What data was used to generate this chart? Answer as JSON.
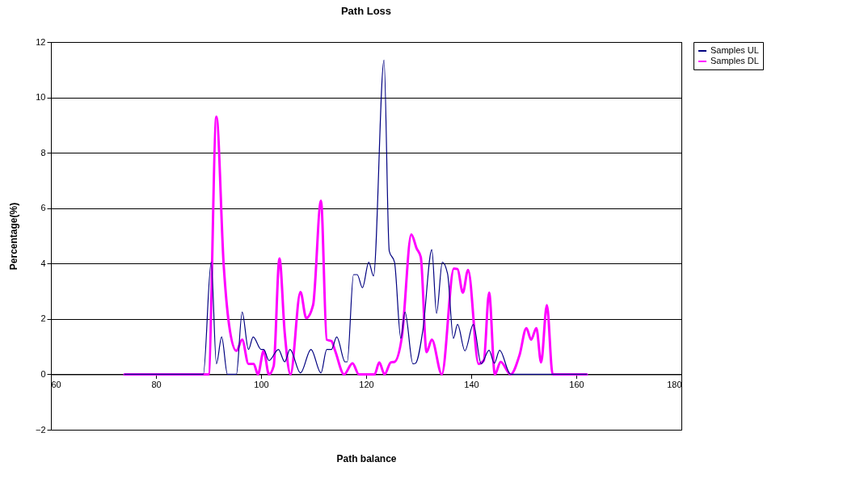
{
  "chart_data": {
    "type": "line",
    "title": "Path Loss",
    "xlabel": "Path balance",
    "ylabel": "Percentage(%)",
    "xlim": [
      60,
      180
    ],
    "xticks": [
      60,
      80,
      100,
      120,
      140,
      160,
      180
    ],
    "ylim": [
      -2,
      12
    ],
    "yticks": [
      -2,
      0,
      2,
      4,
      6,
      8,
      10,
      12
    ],
    "grid": "y",
    "legend": "right",
    "line_style": "solid",
    "series": [
      {
        "name": "Samples UL",
        "color": "#000080",
        "x": [
          74,
          89,
          90.5,
          91.5,
          92.5,
          93.6,
          95.3,
          96.4,
          97.6,
          98.5,
          100,
          100.5,
          101.5,
          103.3,
          104.5,
          105.5,
          107.5,
          109.5,
          111.4,
          112.5,
          113.4,
          114.4,
          116,
          116.4,
          117.6,
          118.3,
          119.3,
          120.5,
          121.4,
          123.4,
          124.4,
          125.4,
          126.6,
          127.4,
          128.9,
          129.4,
          130.8,
          132.5,
          133.4,
          134.5,
          135.5,
          136.6,
          137.4,
          138.8,
          140.4,
          141.9,
          143.4,
          144.4,
          145.4,
          147.5,
          162
        ],
        "values": [
          0,
          0,
          4.05,
          0.38,
          1.35,
          0,
          0,
          2.25,
          0.9,
          1.35,
          0.9,
          0.9,
          0.5,
          0.9,
          0.45,
          0.9,
          0.05,
          0.9,
          0.05,
          0.9,
          0.9,
          1.35,
          0.45,
          0.45,
          3.6,
          3.6,
          3.13,
          4.05,
          3.55,
          11.35,
          4.45,
          4.05,
          1.3,
          2.25,
          0.38,
          0.4,
          1.6,
          4.5,
          2.2,
          4.05,
          3.63,
          1.3,
          1.8,
          0.85,
          1.8,
          0.38,
          0.87,
          0.4,
          0.87,
          0,
          0
        ]
      },
      {
        "name": "Samples DL",
        "color": "#ff00ff",
        "x": [
          74,
          90,
          91.5,
          92.9,
          93.9,
          95.3,
          96.4,
          97.6,
          98.6,
          99.4,
          100.5,
          101.5,
          102.4,
          103.5,
          104.5,
          105.6,
          107.5,
          108.6,
          109.9,
          111.4,
          112.5,
          113.4,
          114.1,
          115.8,
          117.4,
          118.6,
          121.6,
          122.5,
          123.5,
          124.7,
          125.4,
          126.8,
          128.6,
          129.6,
          130.4,
          131.5,
          132.5,
          134.4,
          136.7,
          137.4,
          138.4,
          139.4,
          141.4,
          142.4,
          143.4,
          144.5,
          145.6,
          147.5,
          149.2,
          150.5,
          151.4,
          152.4,
          153.3,
          154.4,
          155.5,
          162
        ],
        "values": [
          0,
          0,
          9.3,
          3.9,
          1.8,
          0.85,
          1.25,
          0.38,
          0.38,
          0,
          0.85,
          0,
          0.3,
          4.18,
          1.5,
          0,
          2.97,
          2.03,
          2.5,
          6.27,
          1.25,
          1.2,
          0.85,
          0,
          0.4,
          0,
          0,
          0.43,
          0,
          0.43,
          0.45,
          1.35,
          5.05,
          4.55,
          4.23,
          0.8,
          1.25,
          0,
          3.82,
          3.8,
          2.95,
          3.77,
          0.38,
          0.5,
          2.95,
          0,
          0.45,
          0,
          0.7,
          1.67,
          1.25,
          1.67,
          0.43,
          2.5,
          0,
          0
        ]
      }
    ]
  }
}
